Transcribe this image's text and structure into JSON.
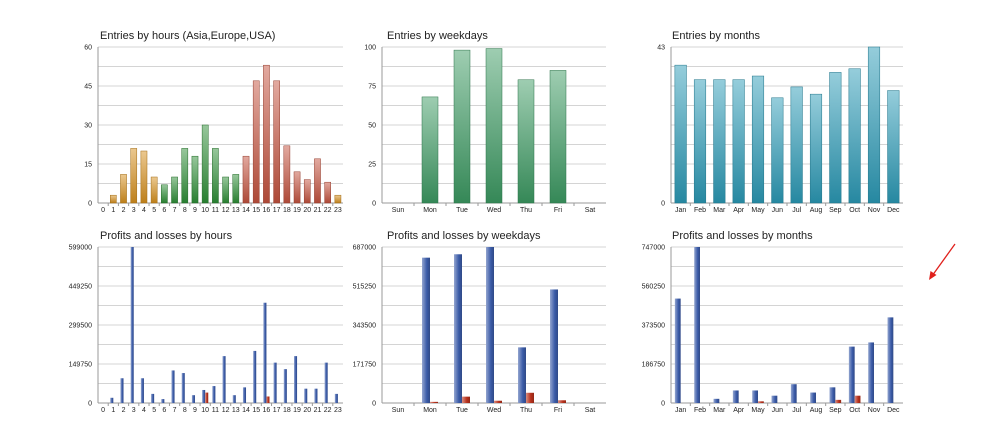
{
  "colors": {
    "hour_asia": "#d7901e",
    "hour_europe": "#2e8f37",
    "hour_usa": "#c5533f",
    "weekday_bar": "#3c9b63",
    "month_bar": "#2b9ab7",
    "profit": "#3b5ba8",
    "loss": "#b8311c",
    "arrow": "#e0201c"
  },
  "chart_data": [
    {
      "type": "bar",
      "title": "Entries by hours (Asia,Europe,USA)",
      "categories": [
        "0",
        "1",
        "2",
        "3",
        "4",
        "5",
        "6",
        "7",
        "8",
        "9",
        "10",
        "11",
        "12",
        "13",
        "14",
        "15",
        "16",
        "17",
        "18",
        "19",
        "20",
        "21",
        "22",
        "23"
      ],
      "values": [
        0,
        3,
        11,
        21,
        20,
        10,
        7,
        10,
        21,
        18,
        30,
        21,
        10,
        11,
        18,
        47,
        53,
        47,
        22,
        12,
        9,
        17,
        8,
        3
      ],
      "ylim": [
        0,
        60
      ],
      "yticks": [
        "0",
        "15",
        "30",
        "45",
        "60"
      ]
    },
    {
      "type": "bar",
      "title": "Entries by weekdays",
      "categories": [
        "Sun",
        "Mon",
        "Tue",
        "Wed",
        "Thu",
        "Fri",
        "Sat"
      ],
      "values": [
        0,
        68,
        98,
        99,
        79,
        85,
        0
      ],
      "ylim": [
        0,
        100
      ],
      "yticks": [
        "0",
        "25",
        "50",
        "75",
        "100"
      ]
    },
    {
      "type": "bar",
      "title": "Entries by months",
      "categories": [
        "Jan",
        "Feb",
        "Mar",
        "Apr",
        "May",
        "Jun",
        "Jul",
        "Aug",
        "Sep",
        "Oct",
        "Nov",
        "Dec"
      ],
      "values": [
        38,
        34,
        34,
        34,
        35,
        29,
        32,
        30,
        36,
        37,
        43,
        31
      ],
      "ylim": [
        0,
        43
      ],
      "yticks": [
        "0",
        "43"
      ]
    },
    {
      "type": "bar",
      "title": "Profits and losses by hours",
      "categories": [
        "0",
        "1",
        "2",
        "3",
        "4",
        "5",
        "6",
        "7",
        "8",
        "9",
        "10",
        "11",
        "12",
        "13",
        "14",
        "15",
        "16",
        "17",
        "18",
        "19",
        "20",
        "21",
        "22",
        "23"
      ],
      "series": [
        {
          "name": "Profits",
          "values": [
            0,
            20000,
            95000,
            599000,
            95000,
            35000,
            15000,
            125000,
            115000,
            30000,
            50000,
            65000,
            180000,
            30000,
            60000,
            200000,
            385000,
            155000,
            130000,
            180000,
            55000,
            55000,
            155000,
            35000
          ]
        },
        {
          "name": "Losses",
          "values": [
            0,
            0,
            0,
            0,
            0,
            0,
            0,
            0,
            0,
            0,
            40000,
            0,
            0,
            0,
            0,
            0,
            25000,
            0,
            0,
            0,
            0,
            0,
            0,
            0
          ]
        }
      ],
      "ylim": [
        0,
        599000
      ],
      "yticks": [
        "0",
        "149750",
        "299500",
        "449250",
        "599000"
      ]
    },
    {
      "type": "bar",
      "title": "Profits and losses by weekdays",
      "categories": [
        "Sun",
        "Mon",
        "Tue",
        "Wed",
        "Thu",
        "Fri",
        "Sat"
      ],
      "series": [
        {
          "name": "Profits",
          "values": [
            0,
            640000,
            655000,
            687000,
            245000,
            500000,
            0
          ]
        },
        {
          "name": "Losses",
          "values": [
            0,
            5000,
            28000,
            10000,
            45000,
            12000,
            0
          ]
        }
      ],
      "ylim": [
        0,
        687000
      ],
      "yticks": [
        "0",
        "171750",
        "343500",
        "515250",
        "687000"
      ]
    },
    {
      "type": "bar",
      "title": "Profits and losses by months",
      "categories": [
        "Jan",
        "Feb",
        "Mar",
        "Apr",
        "May",
        "Jun",
        "Jul",
        "Aug",
        "Sep",
        "Oct",
        "Nov",
        "Dec"
      ],
      "series": [
        {
          "name": "Profits",
          "values": [
            500000,
            747000,
            20000,
            60000,
            60000,
            35000,
            90000,
            50000,
            75000,
            270000,
            290000,
            410000
          ]
        },
        {
          "name": "Losses",
          "values": [
            0,
            0,
            0,
            0,
            8000,
            0,
            0,
            0,
            15000,
            35000,
            0,
            0
          ]
        }
      ],
      "ylim": [
        0,
        747000
      ],
      "yticks": [
        "0",
        "186750",
        "373500",
        "560250",
        "747000"
      ]
    }
  ]
}
